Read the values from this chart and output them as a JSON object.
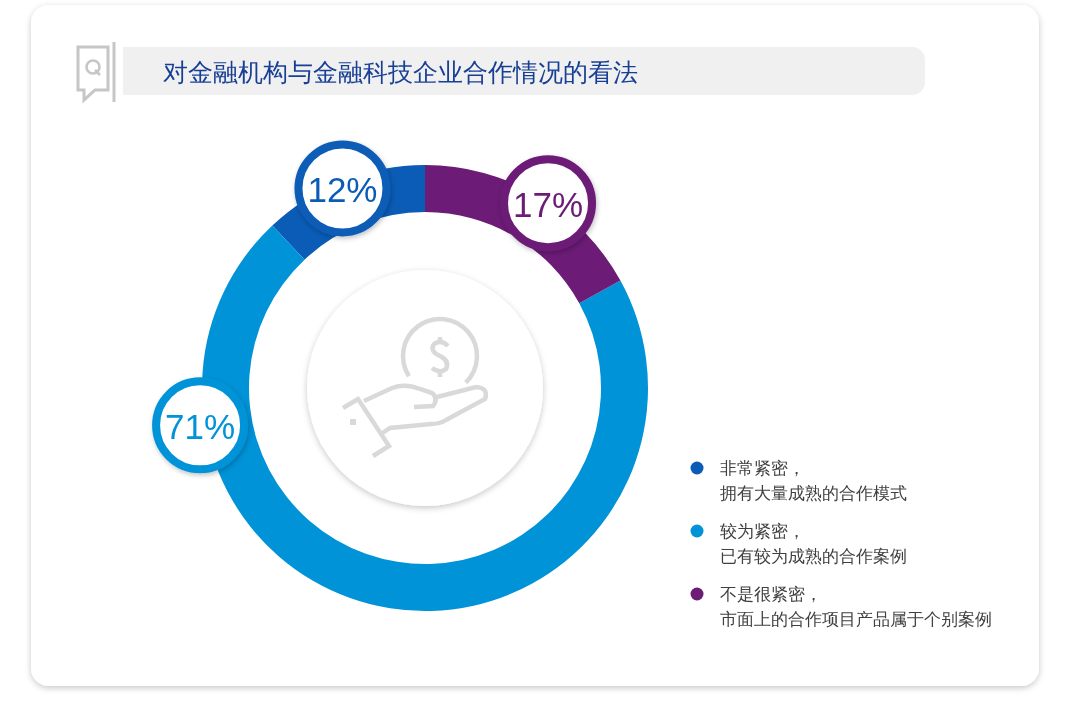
{
  "chart_data": {
    "type": "donut",
    "title": "对金融机构与金融科技企业合作情况的看法",
    "categories": [
      "非常紧密，拥有大量成熟的合作模式",
      "较为紧密，已有较为成熟的合作案例",
      "不是很紧密，市面上的合作项目产品属于个别案例"
    ],
    "values": [
      12,
      71,
      17
    ],
    "colors": [
      "#0a5cb6",
      "#0093d8",
      "#6c1b77"
    ],
    "value_labels": [
      "12%",
      "71%",
      "17%"
    ],
    "legend": "right"
  }
}
